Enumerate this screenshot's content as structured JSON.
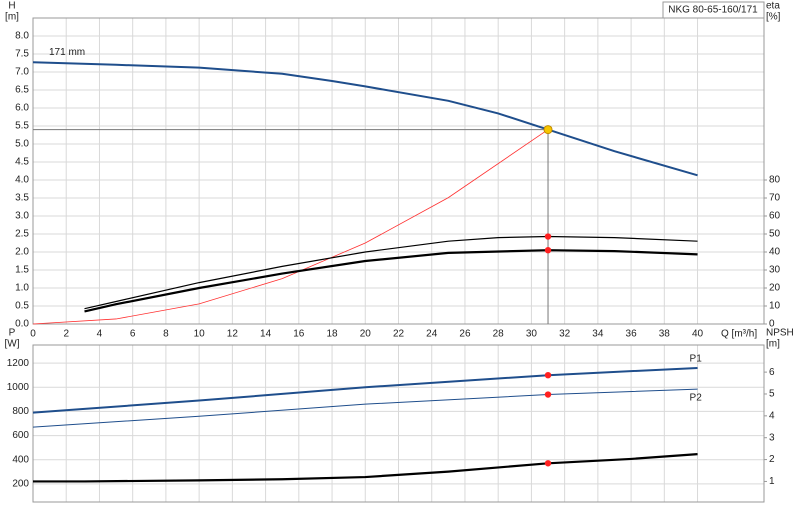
{
  "chart_data": [
    {
      "type": "line",
      "title": "NKG 80-65-160/171",
      "ylabel": "H",
      "yunit": "[m]",
      "y2label": "eta",
      "y2unit": "[%]",
      "xlabel": "Q [m³/h]",
      "xlim": [
        0,
        44
      ],
      "xticks": [
        0,
        2,
        4,
        6,
        8,
        10,
        12,
        14,
        16,
        18,
        20,
        22,
        24,
        26,
        28,
        30,
        32,
        34,
        36,
        38,
        40
      ],
      "ylim": [
        0,
        8.5
      ],
      "yticks": [
        {
          "value": 0,
          "label": "0.0"
        },
        {
          "value": 0.5,
          "label": "0.5"
        },
        {
          "value": 1,
          "label": "1.0"
        },
        {
          "value": 1.5,
          "label": "1.5"
        },
        {
          "value": 2,
          "label": "2.0"
        },
        {
          "value": 2.5,
          "label": "2.5"
        },
        {
          "value": 3,
          "label": "3.0"
        },
        {
          "value": 3.5,
          "label": "3.5"
        },
        {
          "value": 4,
          "label": "4.0"
        },
        {
          "value": 4.5,
          "label": "4.5"
        },
        {
          "value": 5,
          "label": "5.0"
        },
        {
          "value": 5.5,
          "label": "5.5"
        },
        {
          "value": 6,
          "label": "6.0"
        },
        {
          "value": 6.5,
          "label": "6.5"
        },
        {
          "value": 7,
          "label": "7.0"
        },
        {
          "value": 7.5,
          "label": "7.5"
        },
        {
          "value": 8,
          "label": "8.0"
        }
      ],
      "y2lim": [
        0,
        170
      ],
      "y2ticks": [
        0,
        10,
        20,
        30,
        40,
        50,
        60,
        70,
        80
      ],
      "grid": true,
      "operating_point": {
        "x": 31,
        "y": 5.4,
        "color": "#f7c600"
      },
      "series": [
        {
          "name": "171 mm",
          "color": "#1f4e8c",
          "width": 2,
          "x": [
            0,
            5,
            10,
            15,
            18,
            20,
            25,
            28,
            31,
            35,
            40
          ],
          "values": [
            7.27,
            7.2,
            7.12,
            6.95,
            6.75,
            6.6,
            6.2,
            5.85,
            5.4,
            4.8,
            4.13
          ]
        },
        {
          "color": "#ff3030",
          "width": 0.8,
          "x": [
            0,
            5,
            10,
            15,
            20,
            25,
            31
          ],
          "values": [
            0,
            0.14,
            0.56,
            1.26,
            2.25,
            3.51,
            5.4
          ]
        },
        {
          "color": "#000000",
          "width": 1.2,
          "axis": "y2",
          "x": [
            3.1,
            5,
            10,
            15,
            20,
            25,
            28,
            31,
            35,
            40
          ],
          "values": [
            8.5,
            12.5,
            23,
            32,
            40,
            46,
            48,
            48.6,
            48,
            46
          ],
          "marker": {
            "x": 31,
            "y": 48.6,
            "color": "#ff2020"
          }
        },
        {
          "color": "#000000",
          "width": 2.2,
          "axis": "y2",
          "x": [
            3.1,
            5,
            10,
            15,
            20,
            25,
            31,
            35,
            40
          ],
          "values": [
            7,
            11,
            20,
            28,
            35,
            39.5,
            41,
            40.5,
            38.7
          ],
          "marker": {
            "x": 31,
            "y": 41,
            "color": "#ff2020"
          }
        }
      ]
    },
    {
      "type": "line",
      "ylabel": "P",
      "yunit": "[W]",
      "y2label": "NPSH",
      "y2unit": "[m]",
      "xlim": [
        0,
        44
      ],
      "xticks": [
        0,
        2,
        4,
        6,
        8,
        10,
        12,
        14,
        16,
        18,
        20,
        22,
        24,
        26,
        28,
        30,
        32,
        34,
        36,
        38,
        40
      ],
      "ylim": [
        50,
        1350
      ],
      "yticks": [
        200,
        400,
        600,
        800,
        1000,
        1200
      ],
      "y2lim": [
        0.06,
        7.24
      ],
      "y2ticks": [
        1,
        2,
        3,
        4,
        5,
        6
      ],
      "grid": true,
      "series": [
        {
          "name": "P1",
          "color": "#1f4e8c",
          "width": 2,
          "x": [
            0,
            3,
            10,
            20,
            31,
            40
          ],
          "values": [
            790,
            820,
            890,
            1000,
            1100,
            1160
          ],
          "marker": {
            "x": 31,
            "y": 1100,
            "color": "#ff2020"
          }
        },
        {
          "name": "P2",
          "color": "#1f4e8c",
          "width": 1,
          "x": [
            0,
            10,
            20,
            31,
            40
          ],
          "values": [
            670,
            760,
            860,
            940,
            985
          ],
          "marker": {
            "x": 31,
            "y": 940,
            "color": "#ff2020"
          }
        },
        {
          "color": "#000000",
          "width": 2.2,
          "axis": "y2",
          "x": [
            0,
            3.1,
            10,
            15,
            20,
            25,
            31,
            36,
            40
          ],
          "values": [
            1.0,
            1.0,
            1.05,
            1.1,
            1.2,
            1.45,
            1.83,
            2.03,
            2.25
          ],
          "marker": {
            "x": 31,
            "y": 1.83,
            "color": "#ff2020"
          }
        }
      ]
    }
  ]
}
